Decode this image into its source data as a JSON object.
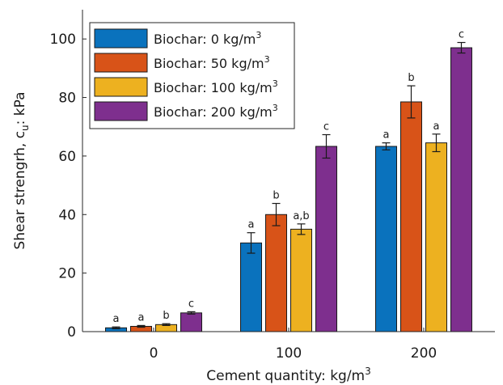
{
  "chart_data": {
    "type": "bar",
    "title": "",
    "xlabel": "Cement quantity: kg/m",
    "xlabel_sup": "3",
    "ylabel": "Shear strengrh, c",
    "ylabel_sub": "u",
    "ylabel_suffix": ": kPa",
    "categories": [
      "0",
      "100",
      "200"
    ],
    "ylim": [
      0,
      110
    ],
    "yticks": [
      0,
      20,
      40,
      60,
      80,
      100
    ],
    "legend_position": "top-left",
    "series": [
      {
        "name": "Biochar: 0 kg/m",
        "name_sup": "3",
        "color": "#0a72bd",
        "values": [
          1.3,
          30.3,
          63.3
        ],
        "errors": [
          0.3,
          3.5,
          1.2
        ],
        "letters": [
          "a",
          "a",
          "a"
        ]
      },
      {
        "name": "Biochar: 50 kg/m",
        "name_sup": "3",
        "color": "#d85318",
        "values": [
          1.8,
          40.0,
          78.5
        ],
        "errors": [
          0.3,
          3.8,
          5.5
        ],
        "letters": [
          "a",
          "b",
          "b"
        ]
      },
      {
        "name": "Biochar: 100 kg/m",
        "name_sup": "3",
        "color": "#edb120",
        "values": [
          2.4,
          35.0,
          64.5
        ],
        "errors": [
          0.3,
          1.8,
          3.0
        ],
        "letters": [
          "b",
          "a,b",
          "a"
        ]
      },
      {
        "name": "Biochar: 200 kg/m",
        "name_sup": "3",
        "color": "#7e2f8e",
        "values": [
          6.4,
          63.3,
          97.0
        ],
        "errors": [
          0.4,
          4.0,
          1.8
        ],
        "letters": [
          "c",
          "c",
          "c"
        ]
      }
    ]
  }
}
